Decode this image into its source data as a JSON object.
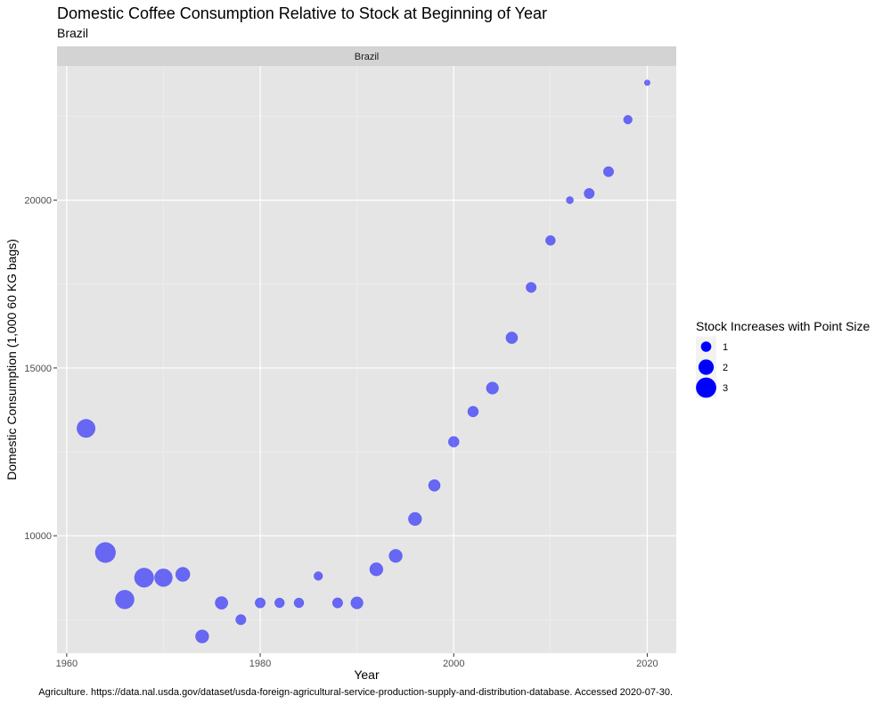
{
  "chart_data": {
    "type": "scatter",
    "title": "Domestic Coffee Consumption Relative to Stock at Beginning of Year",
    "subtitle": "Brazil",
    "facet_label": "Brazil",
    "xlabel": "Year",
    "ylabel": "Domestic Consumption (1,000 60 KG bags)",
    "caption": "Agriculture. https://data.nal.usda.gov/dataset/usda-foreign-agricultural-service-production-supply-and-distribution-database. Accessed 2020-07-30.",
    "x_ticks": [
      1960,
      1980,
      2000,
      2020
    ],
    "y_ticks": [
      10000,
      15000,
      20000
    ],
    "xlim": [
      1959,
      2023
    ],
    "ylim": [
      6500,
      24000
    ],
    "grid": true,
    "point_color": "#0000FF",
    "point_opacity": 0.55,
    "panel_bg": "#E5E5E5",
    "strip_bg": "#D3D3D3",
    "legend": {
      "title": "Stock Increases with Point Size",
      "position": "right",
      "entries": [
        {
          "label": "1",
          "size_value": 1
        },
        {
          "label": "2",
          "size_value": 2
        },
        {
          "label": "3",
          "size_value": 3
        }
      ]
    },
    "points": [
      {
        "x": 1962,
        "y": 13200,
        "size": 2.6
      },
      {
        "x": 1964,
        "y": 9500,
        "size": 3.0
      },
      {
        "x": 1966,
        "y": 8100,
        "size": 2.7
      },
      {
        "x": 1968,
        "y": 8750,
        "size": 2.8
      },
      {
        "x": 1970,
        "y": 8750,
        "size": 2.5
      },
      {
        "x": 1972,
        "y": 8850,
        "size": 1.8
      },
      {
        "x": 1974,
        "y": 7000,
        "size": 1.6
      },
      {
        "x": 1976,
        "y": 8000,
        "size": 1.5
      },
      {
        "x": 1978,
        "y": 7500,
        "size": 1.0
      },
      {
        "x": 1980,
        "y": 8000,
        "size": 1.0
      },
      {
        "x": 1982,
        "y": 8000,
        "size": 0.9
      },
      {
        "x": 1984,
        "y": 8000,
        "size": 0.9
      },
      {
        "x": 1986,
        "y": 8800,
        "size": 0.7
      },
      {
        "x": 1988,
        "y": 8000,
        "size": 1.0
      },
      {
        "x": 1990,
        "y": 8000,
        "size": 1.4
      },
      {
        "x": 1992,
        "y": 9000,
        "size": 1.6
      },
      {
        "x": 1994,
        "y": 9400,
        "size": 1.6
      },
      {
        "x": 1996,
        "y": 10500,
        "size": 1.6
      },
      {
        "x": 1998,
        "y": 11500,
        "size": 1.3
      },
      {
        "x": 2000,
        "y": 12800,
        "size": 1.1
      },
      {
        "x": 2002,
        "y": 13700,
        "size": 1.1
      },
      {
        "x": 2004,
        "y": 14400,
        "size": 1.4
      },
      {
        "x": 2006,
        "y": 15900,
        "size": 1.3
      },
      {
        "x": 2008,
        "y": 17400,
        "size": 1.0
      },
      {
        "x": 2010,
        "y": 18800,
        "size": 0.9
      },
      {
        "x": 2012,
        "y": 20000,
        "size": 0.4
      },
      {
        "x": 2014,
        "y": 20200,
        "size": 1.0
      },
      {
        "x": 2016,
        "y": 20850,
        "size": 1.0
      },
      {
        "x": 2018,
        "y": 22400,
        "size": 0.7
      },
      {
        "x": 2020,
        "y": 23500,
        "size": 0.1
      }
    ]
  }
}
